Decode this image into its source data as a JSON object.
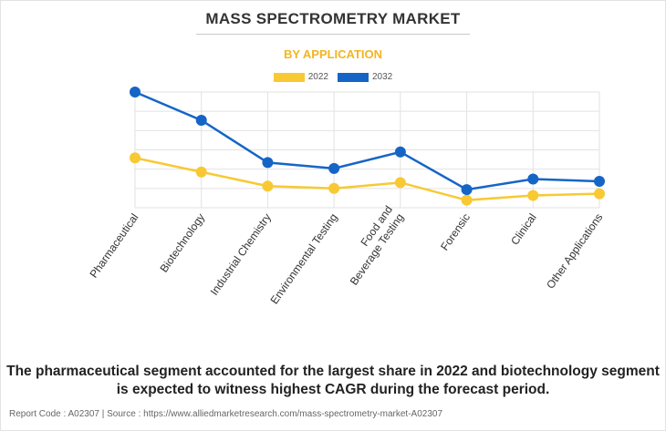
{
  "header": {
    "title": "MASS SPECTROMETRY MARKET",
    "subtitle": "BY APPLICATION"
  },
  "colors": {
    "series_2022": "#f8c932",
    "series_2032": "#1565c7",
    "subtitle": "#f2b521",
    "grid": "#e2e2e2"
  },
  "chart_data": {
    "type": "line",
    "title": "MASS SPECTROMETRY MARKET",
    "subtitle": "BY APPLICATION",
    "xlabel": "",
    "ylabel": "",
    "categories": [
      "Pharmaceutical",
      "Biotechnology",
      "Industrial Chemistry",
      "Environmental Testing",
      "Food and Beverage Testing",
      "Forensic",
      "Clinical",
      "Other Applications"
    ],
    "category_display": [
      [
        "Pharmaceutical"
      ],
      [
        "Biotechnology"
      ],
      [
        "Industrial Chemistry"
      ],
      [
        "Environmental Testing"
      ],
      [
        "Food and",
        "Beverage Testing"
      ],
      [
        "Forensic"
      ],
      [
        "Clinical"
      ],
      [
        "Other Applications"
      ]
    ],
    "series": [
      {
        "name": "2022",
        "values": [
          4.4,
          3.2,
          2.0,
          1.8,
          2.3,
          0.8,
          1.2,
          1.35
        ]
      },
      {
        "name": "2032",
        "values": [
          10.0,
          7.6,
          4.0,
          3.5,
          4.9,
          1.7,
          2.6,
          2.4
        ]
      }
    ],
    "ylim": [
      0,
      10
    ],
    "grid": true,
    "legend": "top-center",
    "y_ticks_visible": false
  },
  "footer": {
    "note": "The pharmaceutical segment accounted for the largest share in 2022 and biotechnology segment is expected to witness highest CAGR during the forecast period.",
    "report": "Report Code : A02307  |  Source : https://www.alliedmarketresearch.com/mass-spectrometry-market-A02307"
  }
}
